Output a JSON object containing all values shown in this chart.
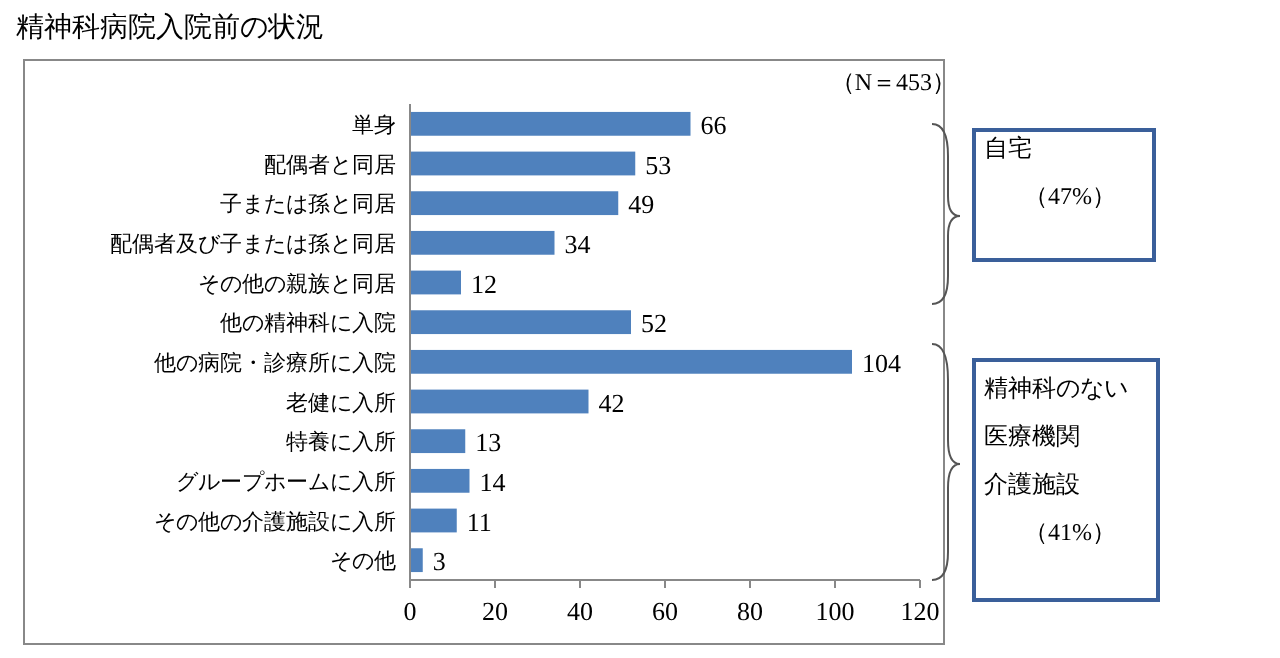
{
  "chart_data": {
    "type": "bar",
    "orientation": "horizontal",
    "title": "精神科病院入院前の状況",
    "categories": [
      "単身",
      "配偶者と同居",
      "子または孫と同居",
      "配偶者及び子または孫と同居",
      "その他の親族と同居",
      "他の精神科に入院",
      "他の病院・診療所に入院",
      "老健に入所",
      "特養に入所",
      "グループホームに入所",
      "その他の介護施設に入所",
      "その他"
    ],
    "values": [
      66,
      53,
      49,
      34,
      12,
      52,
      104,
      42,
      13,
      14,
      11,
      3
    ],
    "color": "#4f81bd",
    "data_labels": true,
    "xlim": [
      0,
      120
    ],
    "xticks": [
      0,
      20,
      40,
      60,
      80,
      100,
      120
    ],
    "grid": false,
    "annotations": [
      "（N＝453）",
      "自宅",
      "（47%）",
      "精神科のない",
      "医療機関",
      "介護施設",
      "（41%）"
    ]
  }
}
